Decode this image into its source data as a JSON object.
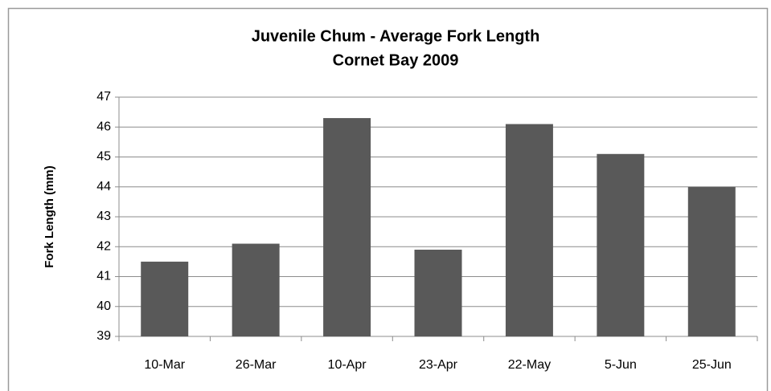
{
  "chart_data": {
    "type": "bar",
    "title": "Juvenile Chum - Average Fork Length",
    "subtitle": "Cornet Bay 2009",
    "y_label": "Fork Length (mm)",
    "categories": [
      "10-Mar",
      "26-Mar",
      "10-Apr",
      "23-Apr",
      "22-May",
      "5-Jun",
      "25-Jun"
    ],
    "values": [
      41.5,
      42.1,
      46.3,
      41.9,
      46.1,
      45.1,
      44.0
    ],
    "color": "#595959",
    "ylim": [
      39,
      47
    ],
    "yticks": [
      39,
      40,
      41,
      42,
      43,
      44,
      45,
      46,
      47
    ],
    "grid": true
  }
}
